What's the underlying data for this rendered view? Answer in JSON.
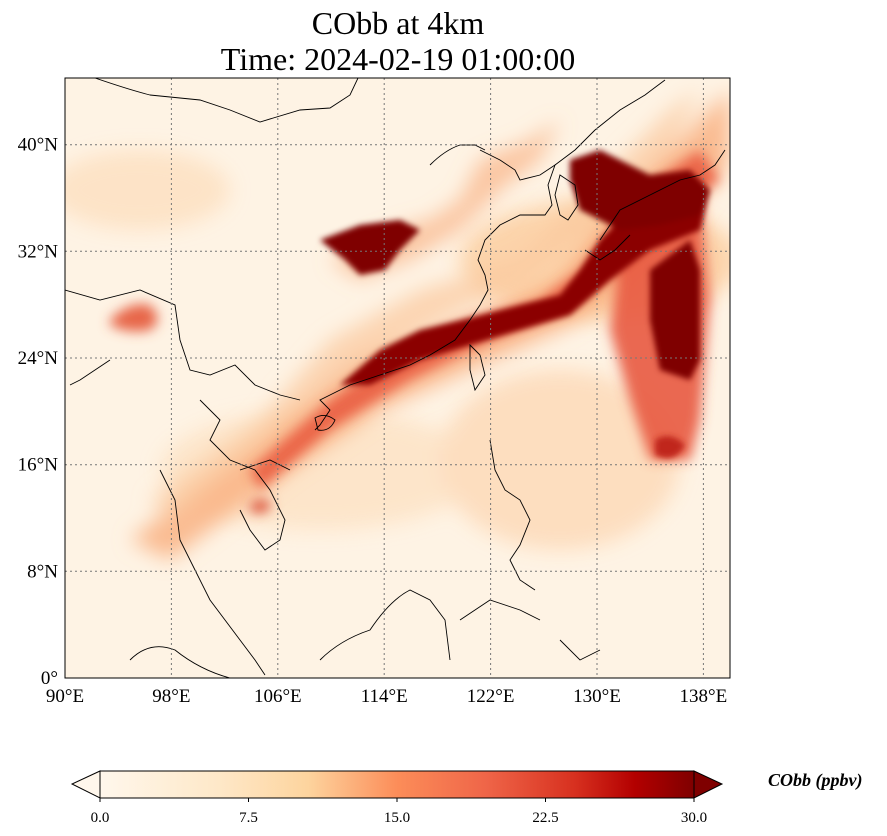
{
  "title": {
    "line1": "CObb at 4km",
    "line2": "Time: 2024-02-19 01:00:00"
  },
  "map": {
    "lon_range": [
      90,
      140
    ],
    "lat_range": [
      0,
      45
    ],
    "lon_ticks": [
      "90°E",
      "98°E",
      "106°E",
      "114°E",
      "122°E",
      "130°E",
      "138°E"
    ],
    "lat_ticks": [
      "0°",
      "8°N",
      "16°N",
      "24°N",
      "32°N",
      "40°N"
    ],
    "gridlines": true,
    "colormap": "OrRd",
    "colors": {
      "low": "#fff7ec",
      "mid": "#fdd49e",
      "high": "#ef6548",
      "max": "#7f0000"
    }
  },
  "colorbar": {
    "label": "CObb (ppbv)",
    "ticks": [
      "0.0",
      "7.5",
      "15.0",
      "22.5",
      "30.0"
    ],
    "range": [
      0,
      30
    ],
    "extend": "both"
  }
}
